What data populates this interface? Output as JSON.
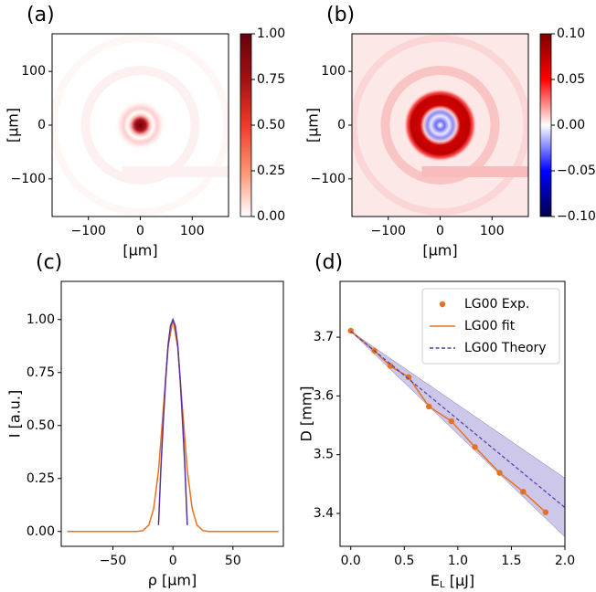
{
  "chart_data": [
    {
      "type": "heatmap",
      "title": "(a)",
      "xlabel": "[μm]",
      "ylabel": "[μm]",
      "xlim": [
        -170,
        170
      ],
      "ylim": [
        -170,
        170
      ],
      "xticks": [
        {
          "value": -100,
          "label": "−100"
        },
        0,
        100
      ],
      "yticks": [
        {
          "value": -100,
          "label": "−100"
        },
        0,
        100
      ],
      "colorbar": {
        "lim": [
          0,
          1
        ],
        "colors": [
          "#ffffff",
          "#fc9272",
          "#ef3b2c",
          "#a50f15",
          "#67000d"
        ],
        "ticks": [
          {
            "value": 0,
            "label": "0.00"
          },
          {
            "value": 0.25,
            "label": "0.25"
          },
          {
            "value": 0.5,
            "label": "0.50"
          },
          {
            "value": 0.75,
            "label": "0.75"
          },
          {
            "value": 1,
            "label": "1.00"
          }
        ]
      }
    },
    {
      "type": "heatmap",
      "title": "(b)",
      "xlabel": "[μm]",
      "ylabel": "[μm]",
      "xlim": [
        -170,
        170
      ],
      "ylim": [
        -170,
        170
      ],
      "xticks": [
        {
          "value": -100,
          "label": "−100"
        },
        0,
        100
      ],
      "yticks": [
        {
          "value": -100,
          "label": "−100"
        },
        0,
        100
      ],
      "colorbar": {
        "lim": [
          -0.1,
          0.1
        ],
        "colors": [
          "#00004c",
          "#0000ff",
          "#ffffff",
          "#ff0000",
          "#7f0000"
        ],
        "ticks": [
          {
            "value": -0.1,
            "label": "−0.10"
          },
          {
            "value": -0.05,
            "label": "−0.05"
          },
          {
            "value": 0,
            "label": "0.00"
          },
          {
            "value": 0.05,
            "label": "0.05"
          },
          {
            "value": 0.1,
            "label": "0.10"
          }
        ]
      }
    },
    {
      "type": "line",
      "title": "(c)",
      "xlabel": "ρ [μm]",
      "ylabel": "I [a.u.]",
      "xlim": [
        -93,
        92
      ],
      "ylim": [
        -0.07,
        1.18
      ],
      "xticks": [
        {
          "value": -50,
          "label": "−50"
        },
        0,
        50
      ],
      "yticks": [
        {
          "value": 0,
          "label": "0.00"
        },
        {
          "value": 0.25,
          "label": "0.25"
        },
        {
          "value": 0.5,
          "label": "0.50"
        },
        {
          "value": 0.75,
          "label": "0.75"
        },
        {
          "value": 1,
          "label": "1.00"
        }
      ],
      "series": [
        {
          "color": "#e8711c",
          "style": "solid",
          "x": [
            -88,
            -30,
            -25,
            -20,
            -16,
            -12,
            -8,
            -4,
            0,
            4,
            8,
            12,
            16,
            20,
            25,
            30,
            88
          ],
          "values": [
            0,
            0,
            0.004,
            0.031,
            0.109,
            0.287,
            0.575,
            0.871,
            1,
            0.871,
            0.575,
            0.287,
            0.109,
            0.031,
            0.004,
            0,
            0
          ]
        },
        {
          "color": "#5b2f9a",
          "style": "solid",
          "x": [
            -12,
            -10,
            -8,
            -6,
            -4,
            -2,
            0,
            2,
            4,
            6,
            8,
            10,
            12
          ],
          "values": [
            0.03,
            0.3,
            0.52,
            0.72,
            0.88,
            0.97,
            1,
            0.97,
            0.88,
            0.72,
            0.52,
            0.3,
            0.03
          ]
        }
      ]
    },
    {
      "type": "line",
      "title": "(d)",
      "xlabel": [
        "E",
        "L",
        " [μJ]"
      ],
      "ylabel": "D [mm]",
      "xlim": [
        -0.1,
        2.0
      ],
      "ylim": [
        3.344,
        3.795
      ],
      "xticks": [
        {
          "value": 0,
          "label": "0.0"
        },
        {
          "value": 0.5,
          "label": "0.5"
        },
        {
          "value": 1,
          "label": "1.0"
        },
        {
          "value": 1.5,
          "label": "1.5"
        },
        {
          "value": 2,
          "label": "2.0"
        }
      ],
      "yticks": [
        3.4,
        3.5,
        3.6,
        3.7
      ],
      "legend": "upper right",
      "band": {
        "color": "#b8afe0",
        "x": [
          0,
          2
        ],
        "lower": [
          3.71,
          3.36
        ],
        "upper": [
          3.71,
          3.46
        ]
      },
      "series": [
        {
          "name": "LG00 Exp.",
          "color": "#e8711c",
          "style": "markers",
          "x": [
            0,
            0.22,
            0.37,
            0.54,
            0.73,
            0.94,
            1.16,
            1.39,
            1.61,
            1.82
          ],
          "values": [
            3.711,
            3.677,
            3.651,
            3.632,
            3.582,
            3.557,
            3.513,
            3.469,
            3.437,
            3.402
          ]
        },
        {
          "name": "LG00 fit",
          "color": "#e8711c",
          "style": "solid",
          "x": [
            0,
            0.22,
            0.37,
            0.54,
            0.73,
            0.94,
            1.16,
            1.39,
            1.61,
            1.82
          ],
          "values": [
            3.711,
            3.677,
            3.651,
            3.632,
            3.582,
            3.557,
            3.513,
            3.469,
            3.437,
            3.402
          ]
        },
        {
          "name": "LG00 Theory",
          "color": "#4a3fa8",
          "style": "dashed",
          "x": [
            0,
            2
          ],
          "values": [
            3.71,
            3.41
          ]
        }
      ]
    }
  ]
}
